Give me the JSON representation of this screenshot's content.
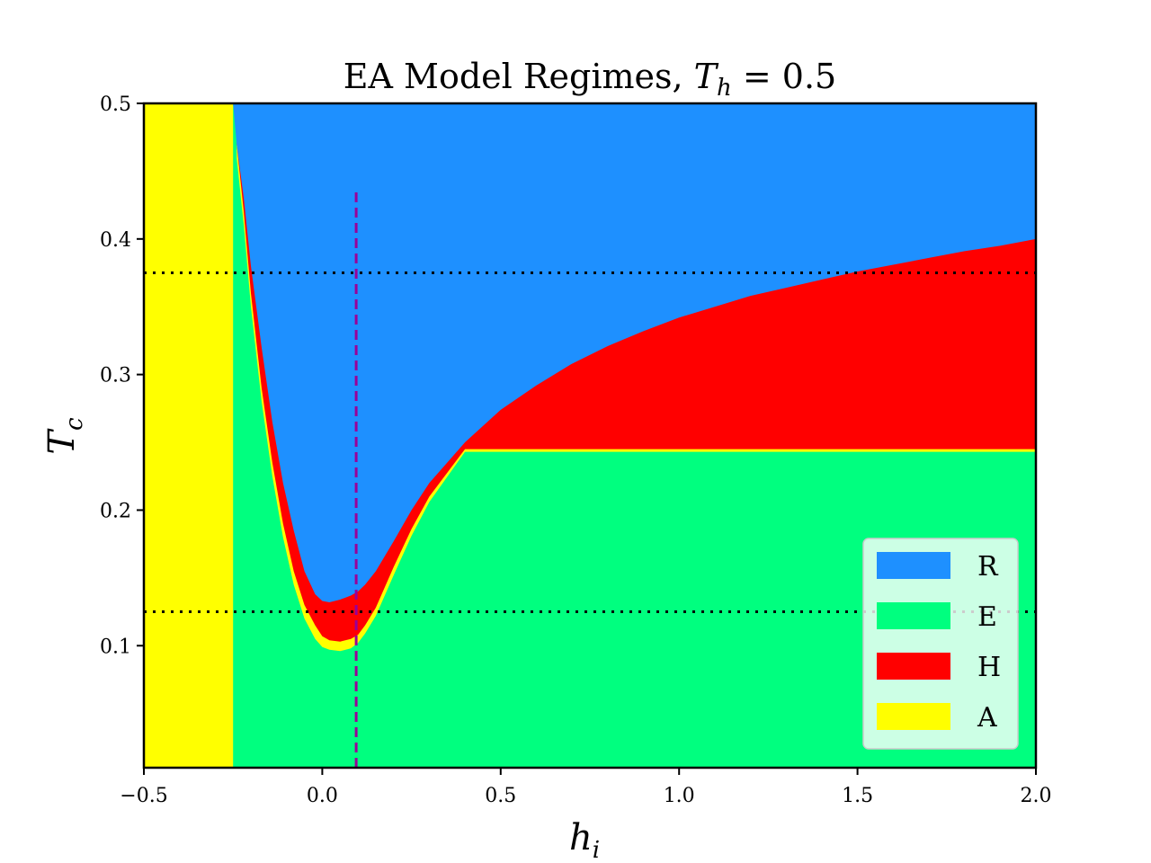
{
  "chart_data": {
    "type": "heatmap",
    "title": {
      "prefix": "EA Model Regimes, ",
      "var_main": "T",
      "var_sub": "h",
      "suffix": " = 0.5"
    },
    "xlabel": {
      "main": "h",
      "sub": "i"
    },
    "ylabel": {
      "main": "T",
      "sub": "c"
    },
    "xlim": [
      -0.5,
      2.0
    ],
    "ylim": [
      0.01,
      0.5
    ],
    "xticks": [
      -0.5,
      0.0,
      0.5,
      1.0,
      1.5,
      2.0
    ],
    "xtick_labels": [
      "−0.5",
      "0.0",
      "0.5",
      "1.0",
      "1.5",
      "2.0"
    ],
    "yticks": [
      0.1,
      0.2,
      0.3,
      0.4,
      0.5
    ],
    "ytick_labels": [
      "0.1",
      "0.2",
      "0.3",
      "0.4",
      "0.5"
    ],
    "grid": false,
    "legend": {
      "placement": "lower-right",
      "entries": [
        {
          "label": "R",
          "color": "#1e90ff"
        },
        {
          "label": "E",
          "color": "#00ff7f"
        },
        {
          "label": "H",
          "color": "#ff0000"
        },
        {
          "label": "A",
          "color": "#ffff00"
        }
      ]
    },
    "regions": {
      "A_vertical_band": {
        "label": "A",
        "x_range": [
          -0.5,
          -0.25
        ]
      },
      "R_E_boundary": {
        "x": [
          -0.25,
          -0.24,
          -0.22,
          -0.2,
          -0.17,
          -0.14,
          -0.11,
          -0.08,
          -0.05,
          -0.02,
          0.0,
          0.02,
          0.05,
          0.08,
          0.1,
          0.12,
          0.15,
          0.2,
          0.25,
          0.3,
          0.4,
          0.5,
          0.6,
          0.7,
          0.8,
          0.9,
          1.0,
          1.1,
          1.2,
          1.3,
          1.4,
          1.5,
          1.6,
          1.7,
          1.8,
          1.9,
          2.0
        ],
        "y": [
          0.5,
          0.47,
          0.43,
          0.38,
          0.32,
          0.265,
          0.22,
          0.185,
          0.155,
          0.138,
          0.133,
          0.132,
          0.134,
          0.137,
          0.14,
          0.145,
          0.155,
          0.177,
          0.2,
          0.22,
          0.25,
          0.274,
          0.292,
          0.308,
          0.321,
          0.332,
          0.342,
          0.35,
          0.358,
          0.364,
          0.37,
          0.376,
          0.381,
          0.386,
          0.391,
          0.395,
          0.4
        ]
      },
      "H_lower_boundary": {
        "x": [
          -0.24,
          -0.22,
          -0.2,
          -0.17,
          -0.14,
          -0.11,
          -0.08,
          -0.05,
          -0.02,
          0.0,
          0.02,
          0.05,
          0.08,
          0.1,
          0.12,
          0.15,
          0.2,
          0.25,
          0.3,
          0.4
        ],
        "y": [
          0.47,
          0.42,
          0.36,
          0.29,
          0.235,
          0.19,
          0.155,
          0.13,
          0.115,
          0.107,
          0.104,
          0.103,
          0.105,
          0.108,
          0.115,
          0.128,
          0.158,
          0.186,
          0.21,
          0.245
        ]
      },
      "A_lower_boundary": {
        "x": [
          -0.24,
          -0.22,
          -0.2,
          -0.17,
          -0.14,
          -0.11,
          -0.08,
          -0.05,
          -0.02,
          0.0,
          0.02,
          0.05,
          0.08,
          0.1,
          0.12,
          0.15,
          0.2,
          0.25,
          0.3,
          0.4
        ],
        "y": [
          0.46,
          0.41,
          0.35,
          0.28,
          0.225,
          0.18,
          0.145,
          0.12,
          0.105,
          0.099,
          0.097,
          0.096,
          0.098,
          0.102,
          0.109,
          0.122,
          0.152,
          0.181,
          0.206,
          0.243
        ]
      }
    },
    "reference_lines": [
      {
        "orientation": "horizontal",
        "value": 0.375,
        "style": "dotted",
        "color": "#000000",
        "extent": [
          -0.5,
          2.0
        ]
      },
      {
        "orientation": "horizontal",
        "value": 0.125,
        "style": "dotted",
        "color": "#000000",
        "extent": [
          -0.5,
          2.0
        ]
      },
      {
        "orientation": "vertical",
        "value": 0.095,
        "style": "dashed",
        "color": "#990099",
        "extent": [
          0.01,
          0.438
        ]
      }
    ]
  }
}
